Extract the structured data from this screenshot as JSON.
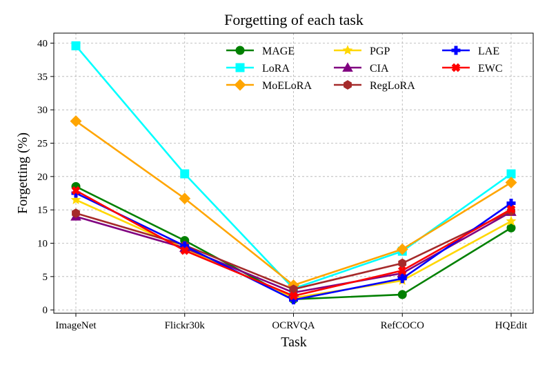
{
  "chart_data": {
    "type": "line",
    "title": "Forgetting of each task",
    "xlabel": "Task",
    "ylabel": "Forgetting (%)",
    "categories": [
      "ImageNet",
      "Flickr30k",
      "OCRVQA",
      "RefCOCO",
      "HQEdit"
    ],
    "ylim": [
      -0.5,
      41.5
    ],
    "yticks": [
      0,
      5,
      10,
      15,
      20,
      25,
      30,
      35,
      40
    ],
    "grid": true,
    "legend_position": "top-right",
    "series": [
      {
        "name": "MAGE",
        "color": "#008000",
        "marker": "circle",
        "values": [
          18.5,
          10.4,
          1.6,
          2.3,
          12.3
        ]
      },
      {
        "name": "LoRA",
        "color": "#00ffff",
        "marker": "square",
        "values": [
          39.6,
          20.4,
          3.2,
          8.8,
          20.4
        ]
      },
      {
        "name": "MoELoRA",
        "color": "#ffa500",
        "marker": "diamond",
        "values": [
          28.3,
          16.7,
          3.7,
          9.1,
          19.1
        ]
      },
      {
        "name": "PGP",
        "color": "#ffd700",
        "marker": "star",
        "values": [
          16.5,
          9.2,
          1.8,
          4.4,
          13.3
        ]
      },
      {
        "name": "CIA",
        "color": "#800080",
        "marker": "triangle",
        "values": [
          14.0,
          9.3,
          2.6,
          5.5,
          14.7
        ]
      },
      {
        "name": "RegLoRA",
        "color": "#a52a2a",
        "marker": "hexagon",
        "values": [
          14.5,
          9.7,
          3.1,
          7.0,
          14.8
        ]
      },
      {
        "name": "LAE",
        "color": "#0000ff",
        "marker": "plus",
        "values": [
          17.5,
          9.6,
          1.5,
          4.7,
          16.0
        ]
      },
      {
        "name": "EWC",
        "color": "#ff0000",
        "marker": "x",
        "values": [
          17.9,
          8.9,
          2.1,
          5.9,
          15.1
        ]
      }
    ]
  }
}
